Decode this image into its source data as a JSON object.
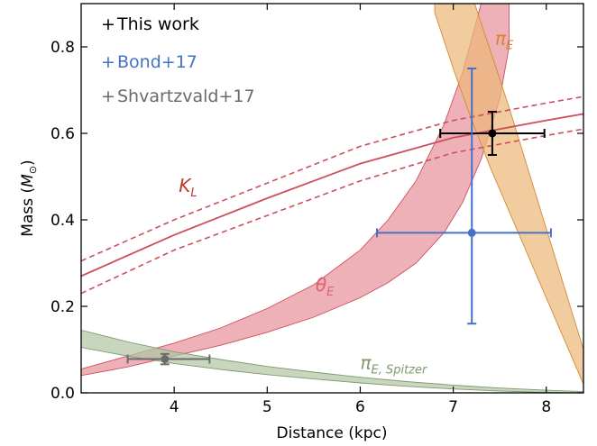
{
  "chart_data": {
    "type": "line",
    "title": "",
    "xlabel": "Distance (kpc)",
    "ylabel_main": "Mass (",
    "ylabel_symbol": "M",
    "ylabel_sub": "⊙",
    "ylabel_close": ")",
    "xlim": [
      3.0,
      8.4
    ],
    "ylim": [
      0.0,
      0.9
    ],
    "xticks": [
      4,
      5,
      6,
      7,
      8
    ],
    "yticks": [
      0.0,
      0.2,
      0.4,
      0.6,
      0.8
    ],
    "xtick_labels": [
      "4",
      "5",
      "6",
      "7",
      "8"
    ],
    "ytick_labels": [
      "0.0",
      "0.2",
      "0.4",
      "0.6",
      "0.8"
    ],
    "grid": false,
    "legend_position": "top-left",
    "legend": [
      {
        "marker": "+",
        "label": "This work",
        "color": "#000000"
      },
      {
        "marker": "+",
        "label": "Bond+17",
        "color": "#4472c4"
      },
      {
        "marker": "+",
        "label": "Shvartzvald+17",
        "color": "#6a6a6a"
      }
    ],
    "bands": [
      {
        "name": "θ_E",
        "label_main": "θ",
        "label_sub": "E",
        "color": "#e8939d",
        "edge": "#cd4f5c",
        "x": [
          3.0,
          3.5,
          4.0,
          4.5,
          5.0,
          5.5,
          6.0,
          6.3,
          6.6,
          6.9,
          7.1,
          7.3,
          7.5,
          7.6
        ],
        "lower": [
          0.04,
          0.06,
          0.085,
          0.11,
          0.14,
          0.175,
          0.22,
          0.255,
          0.3,
          0.37,
          0.44,
          0.54,
          0.68,
          0.8
        ],
        "upper": [
          0.055,
          0.085,
          0.115,
          0.15,
          0.195,
          0.25,
          0.33,
          0.4,
          0.49,
          0.62,
          0.74,
          0.9,
          1.08,
          1.2
        ]
      },
      {
        "name": "π_E",
        "label_main": "π",
        "label_sub": "E",
        "color": "#ecb878",
        "edge": "#d48a30",
        "x": [
          6.8,
          7.0,
          7.2,
          7.4,
          7.6,
          7.8,
          8.0,
          8.2,
          8.4
        ],
        "lower": [
          0.88,
          0.75,
          0.63,
          0.52,
          0.42,
          0.32,
          0.22,
          0.12,
          0.02
        ],
        "upper": [
          1.2,
          1.05,
          0.92,
          0.79,
          0.66,
          0.52,
          0.38,
          0.24,
          0.1
        ]
      },
      {
        "name": "π_E,Spitzer",
        "label_main": "π",
        "label_sub": "E, Spitzer",
        "color": "#b3c6a3",
        "edge": "#7e9a72",
        "x": [
          3.0,
          3.5,
          4.0,
          4.5,
          5.0,
          5.5,
          6.0,
          6.5,
          7.0,
          7.5,
          8.0,
          8.4
        ],
        "lower": [
          0.105,
          0.085,
          0.068,
          0.054,
          0.042,
          0.032,
          0.023,
          0.015,
          0.009,
          0.004,
          0.001,
          0.0
        ],
        "upper": [
          0.145,
          0.118,
          0.095,
          0.077,
          0.061,
          0.048,
          0.036,
          0.026,
          0.018,
          0.011,
          0.006,
          0.003
        ]
      }
    ],
    "series": [
      {
        "name": "K_L",
        "label_main": "K",
        "label_sub": "L",
        "color": "#cd4f5c",
        "x": [
          3.0,
          4.0,
          5.0,
          6.0,
          7.0,
          8.0,
          8.4
        ],
        "center": [
          0.27,
          0.365,
          0.45,
          0.53,
          0.59,
          0.63,
          0.645
        ],
        "upper": [
          0.305,
          0.4,
          0.485,
          0.57,
          0.63,
          0.67,
          0.685
        ],
        "lower": [
          0.23,
          0.33,
          0.41,
          0.49,
          0.555,
          0.595,
          0.61
        ]
      }
    ],
    "points": [
      {
        "name": "This work",
        "color": "#000000",
        "x": 7.42,
        "y": 0.6,
        "xerr": [
          0.56,
          0.56
        ],
        "yerr": [
          0.05,
          0.05
        ]
      },
      {
        "name": "Bond+17",
        "color": "#4472c4",
        "x": 7.2,
        "y": 0.37,
        "xerr": [
          1.02,
          0.85
        ],
        "yerr": [
          0.21,
          0.38
        ]
      },
      {
        "name": "Shvartzvald+17",
        "color": "#6a6a6a",
        "x": 3.9,
        "y": 0.078,
        "xerr": [
          0.4,
          0.48
        ],
        "yerr": [
          0.012,
          0.012
        ]
      }
    ]
  }
}
